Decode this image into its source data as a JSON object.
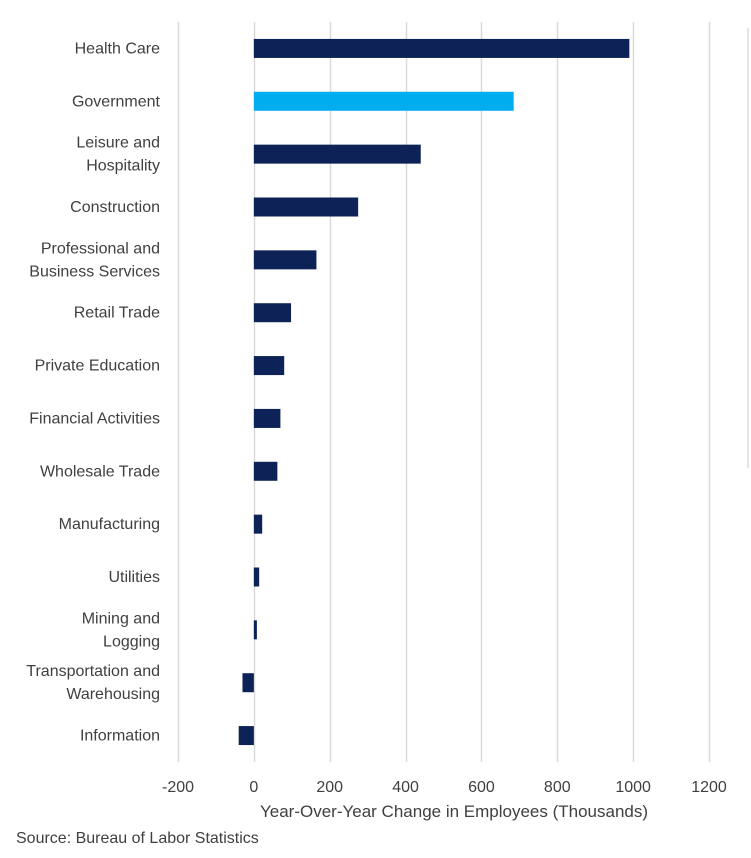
{
  "chart_data": {
    "type": "bar",
    "orientation": "horizontal",
    "categories": [
      [
        "Health Care"
      ],
      [
        "Government"
      ],
      [
        "Leisure and",
        "Hospitality"
      ],
      [
        "Construction"
      ],
      [
        "Professional and",
        "Business Services"
      ],
      [
        "Retail Trade"
      ],
      [
        "Private Education"
      ],
      [
        "Financial Activities"
      ],
      [
        "Wholesale Trade"
      ],
      [
        "Manufacturing"
      ],
      [
        "Utilities"
      ],
      [
        "Mining and",
        "Logging"
      ],
      [
        "Transportation and",
        "Warehousing"
      ],
      [
        "Information"
      ]
    ],
    "values": [
      990,
      685,
      440,
      275,
      165,
      98,
      80,
      70,
      62,
      22,
      14,
      8,
      -30,
      -40
    ],
    "highlight_index": 1,
    "colors": {
      "default": "#0d2257",
      "highlight": "#00aeef",
      "grid": "#d9d9d9",
      "text": "#404040"
    },
    "xlim": [
      -200,
      1200
    ],
    "xticks": [
      -200,
      0,
      200,
      400,
      600,
      800,
      1000,
      1200
    ],
    "xlabel": "Year-Over-Year  Change in Employees (Thousands)",
    "ylabel": "",
    "title": "",
    "grid": true
  },
  "source": "Source: Bureau of Labor Statistics"
}
